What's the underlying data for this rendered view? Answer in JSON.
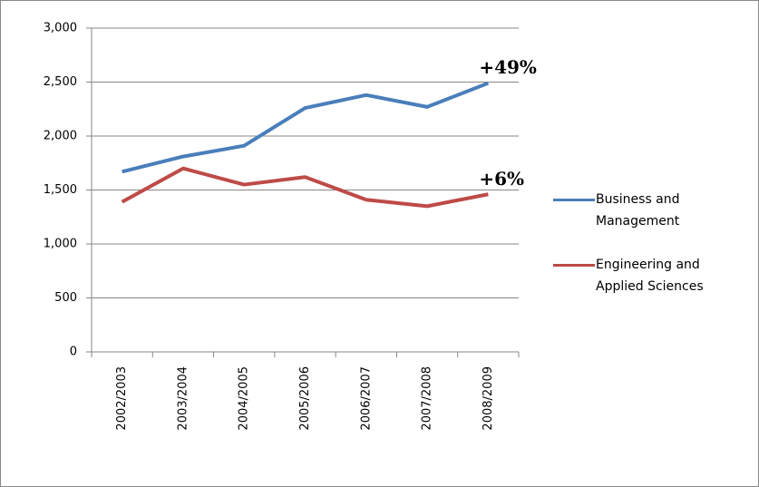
{
  "chart_data": {
    "type": "line",
    "categories": [
      "2002/2003",
      "2003/2004",
      "2004/2005",
      "2005/2006",
      "2006/2007",
      "2007/2008",
      "2008/2009"
    ],
    "series": [
      {
        "name": "Business and Management",
        "color": "#4a7ebb",
        "values": [
          1670,
          1810,
          1910,
          2260,
          2380,
          2270,
          2490
        ]
      },
      {
        "name": "Engineering and Applied Sciences",
        "color": "#be4b48",
        "values": [
          1390,
          1700,
          1550,
          1620,
          1410,
          1350,
          1460
        ]
      }
    ],
    "annotations": [
      "+49%",
      "+6%"
    ],
    "ylim": [
      0,
      3000
    ],
    "yticks": [
      0,
      500,
      {
        "value": 1000,
        "label": "1,000"
      },
      {
        "value": 1500,
        "label": "1,500"
      },
      {
        "value": 2000,
        "label": "2,000"
      },
      {
        "value": 2500,
        "label": "2,500"
      },
      {
        "value": 3000,
        "label": "3,000"
      }
    ],
    "grid": true,
    "legend": "right"
  }
}
